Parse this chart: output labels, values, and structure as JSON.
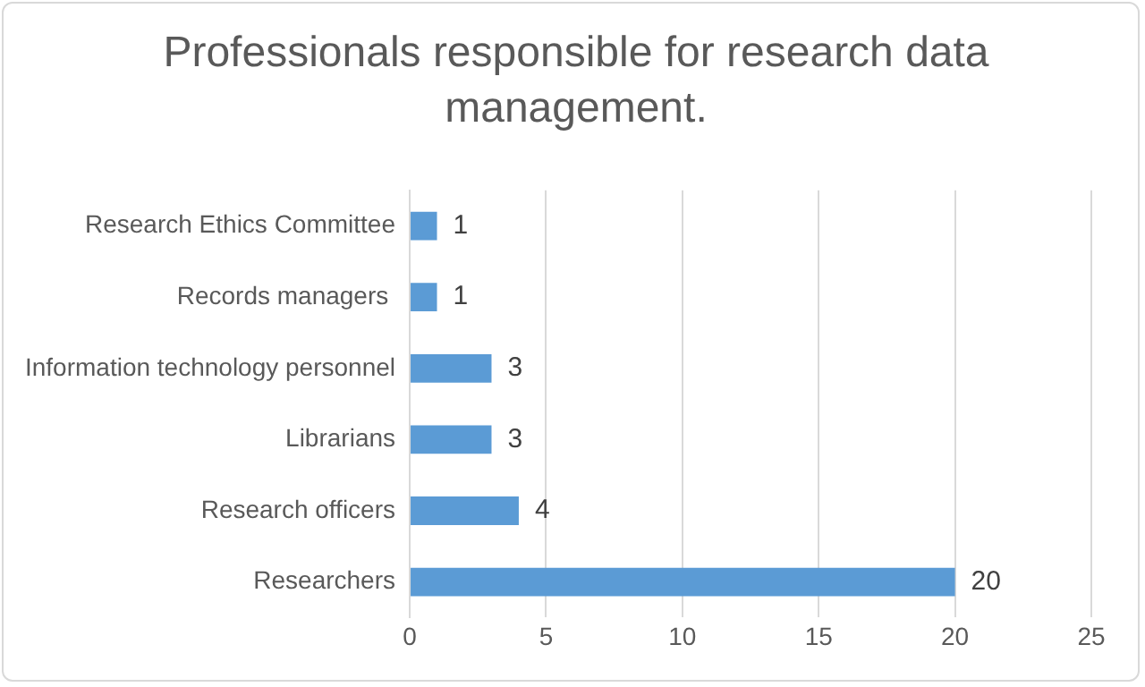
{
  "chart_data": {
    "type": "bar",
    "orientation": "horizontal",
    "title": "Professionals responsible for research data management.",
    "categories": [
      "Research Ethics Committee",
      "Records managers ",
      "Information technology personnel",
      "Librarians",
      "Research officers",
      "Researchers"
    ],
    "values": [
      1,
      1,
      3,
      3,
      4,
      20
    ],
    "color": "#5b9bd5",
    "xlim": [
      0,
      25
    ],
    "xticks": [
      0,
      5,
      10,
      15,
      20,
      25
    ],
    "grid": "x",
    "data_labels": true
  }
}
